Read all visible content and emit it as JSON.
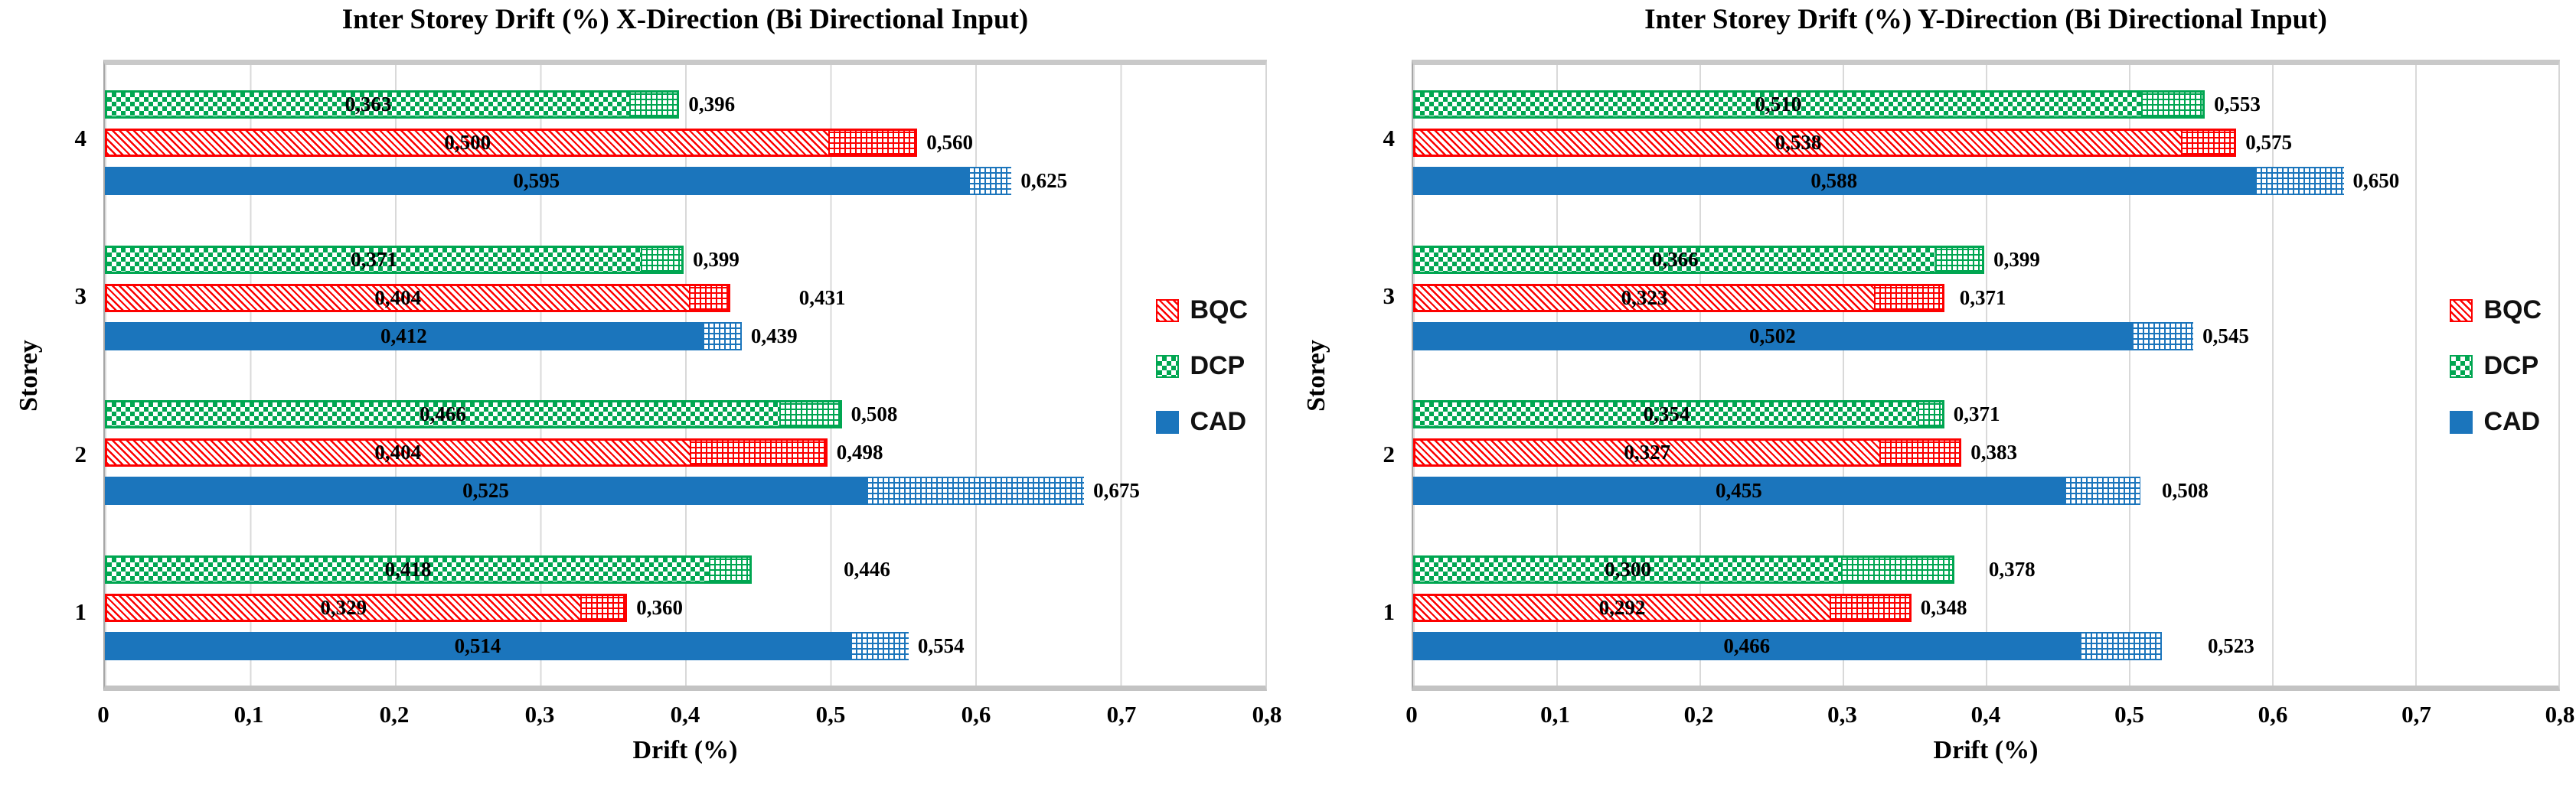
{
  "series_styles": {
    "BQC": {
      "color": "#FD0000",
      "solid_pattern": "diagonal-hatch",
      "extension_pattern": "grid"
    },
    "DCP": {
      "color": "#00A651",
      "solid_pattern": "checkerboard",
      "extension_pattern": "grid"
    },
    "CAD": {
      "color": "#1B75BC",
      "solid_pattern": "solid",
      "extension_pattern": "grid"
    }
  },
  "chart_data": [
    {
      "type": "bar",
      "orientation": "horizontal",
      "title": "Inter Storey Drift (%) X-Direction (Bi Directional Input)",
      "xlabel": "Drift (%)",
      "ylabel": "Storey",
      "xlim": [
        0,
        0.8
      ],
      "xtick_labels": [
        "0",
        "0,1",
        "0,2",
        "0,3",
        "0,4",
        "0,5",
        "0,6",
        "0,7",
        "0,8"
      ],
      "decimal_separator": ",",
      "grid": "vertical",
      "legend": {
        "position": "right-inside",
        "entries": [
          "BQC",
          "DCP",
          "CAD"
        ]
      },
      "bar_structure": "solid segment = first value; hatched grid extension ends at total = second value",
      "storeys": [
        {
          "label": "4",
          "bars": [
            {
              "series": "DCP",
              "solid": 0.363,
              "total": 0.396,
              "solid_label": "0,363",
              "total_label": "0,396"
            },
            {
              "series": "BQC",
              "solid": 0.5,
              "total": 0.56,
              "solid_label": "0,500",
              "total_label": "0,560"
            },
            {
              "series": "CAD",
              "solid": 0.595,
              "total": 0.625,
              "solid_label": "0,595",
              "total_label": "0,625"
            }
          ]
        },
        {
          "label": "3",
          "bars": [
            {
              "series": "DCP",
              "solid": 0.371,
              "total": 0.399,
              "solid_label": "0,371",
              "total_label": "0,399"
            },
            {
              "series": "BQC",
              "solid": 0.404,
              "total": 0.431,
              "solid_label": "0,404",
              "total_label": "0,431",
              "label_gap": 90
            },
            {
              "series": "CAD",
              "solid": 0.412,
              "total": 0.439,
              "solid_label": "0,412",
              "total_label": "0,439"
            }
          ]
        },
        {
          "label": "2",
          "bars": [
            {
              "series": "DCP",
              "solid": 0.466,
              "total": 0.508,
              "solid_label": "0,466",
              "total_label": "0,508"
            },
            {
              "series": "BQC",
              "solid": 0.404,
              "total": 0.498,
              "solid_label": "0,404",
              "total_label": "0,498"
            },
            {
              "series": "CAD",
              "solid": 0.525,
              "total": 0.675,
              "solid_label": "0,525",
              "total_label": "0,675"
            }
          ]
        },
        {
          "label": "1",
          "bars": [
            {
              "series": "DCP",
              "solid": 0.418,
              "total": 0.446,
              "solid_label": "0,418",
              "total_label": "0,446",
              "label_gap": 120
            },
            {
              "series": "BQC",
              "solid": 0.329,
              "total": 0.36,
              "solid_label": "0,329",
              "total_label": "0,360"
            },
            {
              "series": "CAD",
              "solid": 0.514,
              "total": 0.554,
              "solid_label": "0,514",
              "total_label": "0,554"
            }
          ]
        }
      ]
    },
    {
      "type": "bar",
      "orientation": "horizontal",
      "title": "Inter Storey Drift (%) Y-Direction (Bi Directional Input)",
      "xlabel": "Drift (%)",
      "ylabel": "Storey",
      "xlim": [
        0,
        0.8
      ],
      "xtick_labels": [
        "0",
        "0,1",
        "0,2",
        "0,3",
        "0,4",
        "0,5",
        "0,6",
        "0,7",
        "0,8"
      ],
      "decimal_separator": ",",
      "grid": "vertical",
      "legend": {
        "position": "right-inside",
        "entries": [
          "BQC",
          "DCP",
          "CAD"
        ]
      },
      "bar_structure": "solid segment = first value; hatched grid extension ends at total = second value",
      "storeys": [
        {
          "label": "4",
          "bars": [
            {
              "series": "DCP",
              "solid": 0.51,
              "total": 0.553,
              "solid_label": "0,510",
              "total_label": "0,553"
            },
            {
              "series": "BQC",
              "solid": 0.538,
              "total": 0.575,
              "solid_label": "0,538",
              "total_label": "0,575"
            },
            {
              "series": "CAD",
              "solid": 0.588,
              "total": 0.65,
              "solid_label": "0,588",
              "total_label": "0,650"
            }
          ]
        },
        {
          "label": "3",
          "bars": [
            {
              "series": "DCP",
              "solid": 0.366,
              "total": 0.399,
              "solid_label": "0,366",
              "total_label": "0,399"
            },
            {
              "series": "BQC",
              "solid": 0.323,
              "total": 0.371,
              "solid_label": "0,323",
              "total_label": "0,371",
              "label_gap": 20
            },
            {
              "series": "CAD",
              "solid": 0.502,
              "total": 0.545,
              "solid_label": "0,502",
              "total_label": "0,545"
            }
          ]
        },
        {
          "label": "2",
          "bars": [
            {
              "series": "DCP",
              "solid": 0.354,
              "total": 0.371,
              "solid_label": "0,354",
              "total_label": "0,371"
            },
            {
              "series": "BQC",
              "solid": 0.327,
              "total": 0.383,
              "solid_label": "0,327",
              "total_label": "0,383"
            },
            {
              "series": "CAD",
              "solid": 0.455,
              "total": 0.508,
              "solid_label": "0,455",
              "total_label": "0,508",
              "label_gap": 28
            }
          ]
        },
        {
          "label": "1",
          "bars": [
            {
              "series": "DCP",
              "solid": 0.3,
              "total": 0.378,
              "solid_label": "0,300",
              "total_label": "0,378",
              "label_gap": 45
            },
            {
              "series": "BQC",
              "solid": 0.292,
              "total": 0.348,
              "solid_label": "0,292",
              "total_label": "0,348"
            },
            {
              "series": "CAD",
              "solid": 0.466,
              "total": 0.523,
              "solid_label": "0,466",
              "total_label": "0,523",
              "label_gap": 60
            }
          ]
        }
      ]
    }
  ]
}
